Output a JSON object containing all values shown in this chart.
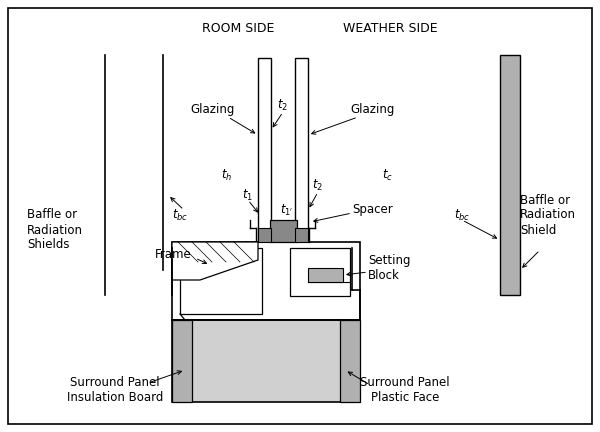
{
  "background_color": "#ffffff",
  "room_side_label": "ROOM SIDE",
  "weather_side_label": "WEATHER SIDE",
  "baffle_left_label": "Baffle or\nRadiation\nShields",
  "baffle_right_label": "Baffle or\nRadiation\nShield",
  "gray_light": "#d0d0d0",
  "gray_medium": "#b0b0b0",
  "gray_dark": "#888888",
  "figsize": [
    6.0,
    4.32
  ],
  "dpi": 100
}
